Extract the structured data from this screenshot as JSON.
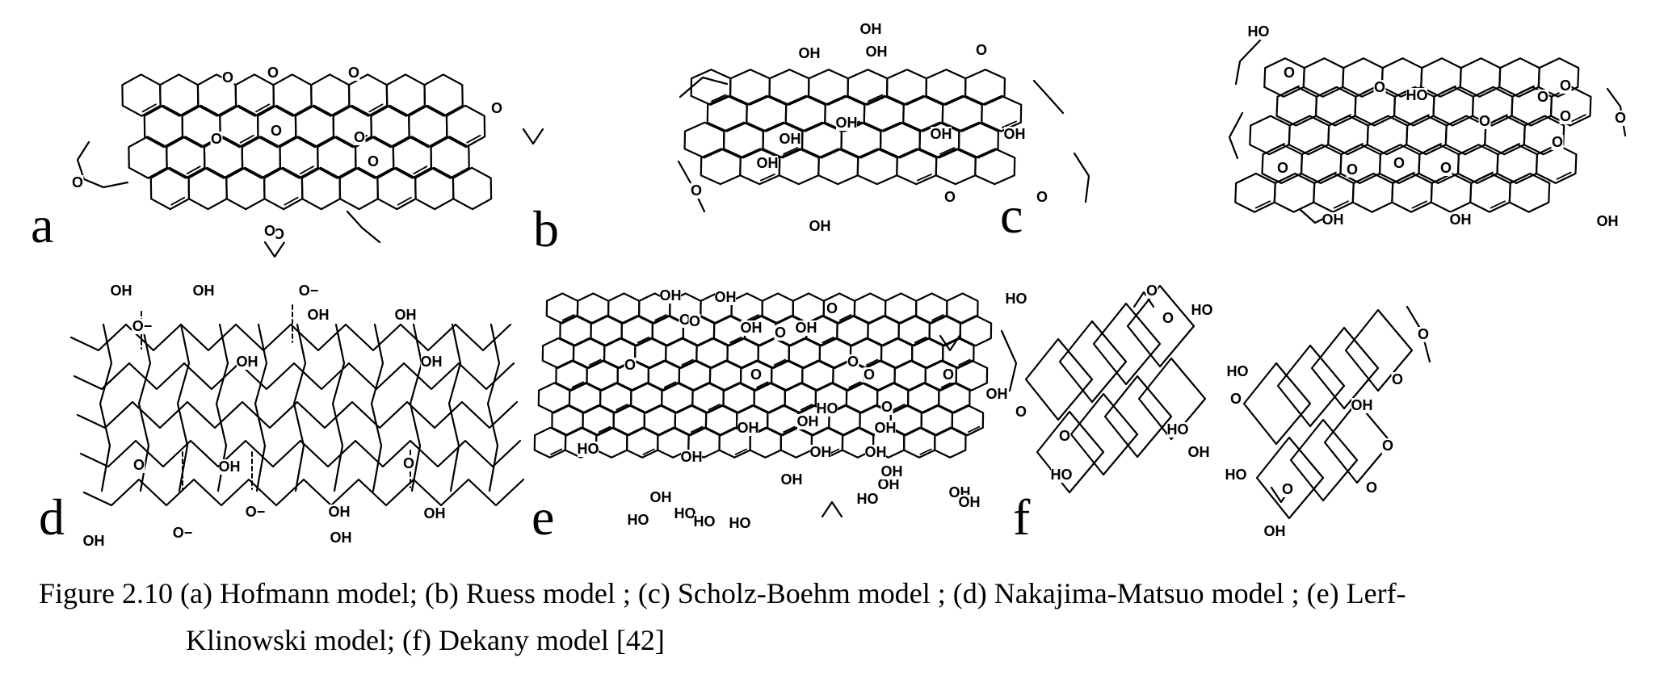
{
  "panels": [
    {
      "id": "a",
      "letter": "a",
      "groups": [
        "O",
        "O",
        "O",
        "O",
        "O",
        "O",
        "O",
        "O",
        "O",
        "O",
        "O"
      ]
    },
    {
      "id": "b",
      "letter": "b",
      "groups": [
        "OH",
        "OH",
        "OH",
        "OH",
        "OH",
        "OH",
        "OH",
        "OH",
        "OH",
        "O",
        "O",
        "O",
        "O"
      ]
    },
    {
      "id": "c",
      "letter": "c",
      "groups": [
        "HO",
        "OH",
        "OH",
        "OH",
        "HO",
        "O",
        "O",
        "O",
        "O",
        "O",
        "O",
        "O",
        "O",
        "O",
        "O",
        "O",
        "O"
      ]
    },
    {
      "id": "d",
      "letter": "d",
      "groups": [
        "OH",
        "OH",
        "O−",
        "O−",
        "OH",
        "OH",
        "OH",
        "OH",
        "O",
        "O",
        "OH",
        "O−",
        "O−",
        "OH",
        "OH",
        "OH",
        "OH"
      ]
    },
    {
      "id": "e",
      "letter": "e",
      "groups": [
        "OH",
        "OH",
        "OH",
        "OH",
        "OH",
        "HO",
        "OH",
        "OH",
        "HO",
        "HO",
        "OH",
        "OH",
        "OH",
        "HO",
        "OH",
        "HO",
        "OH",
        "OH",
        "HO",
        "HO",
        "OH",
        "OH",
        "OH",
        "OH",
        "O",
        "O",
        "O",
        "O",
        "O",
        "O",
        "O",
        "O",
        "O",
        "O"
      ]
    },
    {
      "id": "f",
      "letter": "f",
      "groups": [
        "HO",
        "HO",
        "HO",
        "O",
        "O",
        "O",
        "O",
        "O",
        "O",
        "OH",
        "OH",
        "HO",
        "HO",
        "HO",
        "OH",
        "O",
        "O",
        "O",
        "O"
      ]
    }
  ],
  "caption": {
    "line1": "Figure 2.10 (a) Hofmann model; (b) Ruess model ; (c) Scholz-Boehm model ; (d) Nakajima-Matsuo model ; (e) Lerf-",
    "line2": "Klinowski model; (f) Dekany model [42]"
  }
}
